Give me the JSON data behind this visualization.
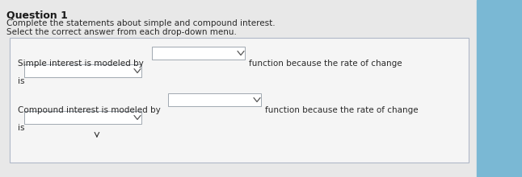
{
  "title": "Question 1",
  "subtitle1": "Complete the statements about simple and compound interest.",
  "subtitle2": "Select the correct answer from each drop-down menu.",
  "line1_text1": "Simple interest is modeled by",
  "line1_text2": "function because the rate of change",
  "line2_text1": "is",
  "line3_text1": "Compound interest is modeled by",
  "line3_text2": "function because the rate of change",
  "line4_text1": "is",
  "bg_main": "#e8e8e8",
  "bg_blue": "#7ab8d4",
  "bg_panel": "#f5f5f5",
  "panel_border": "#b0b8c8",
  "box_fill": "#ffffff",
  "box_border": "#a0a8b0",
  "text_color": "#2a2a2a",
  "title_color": "#1a1a1a",
  "figsize": [
    6.46,
    2.2
  ],
  "dpi": 100
}
